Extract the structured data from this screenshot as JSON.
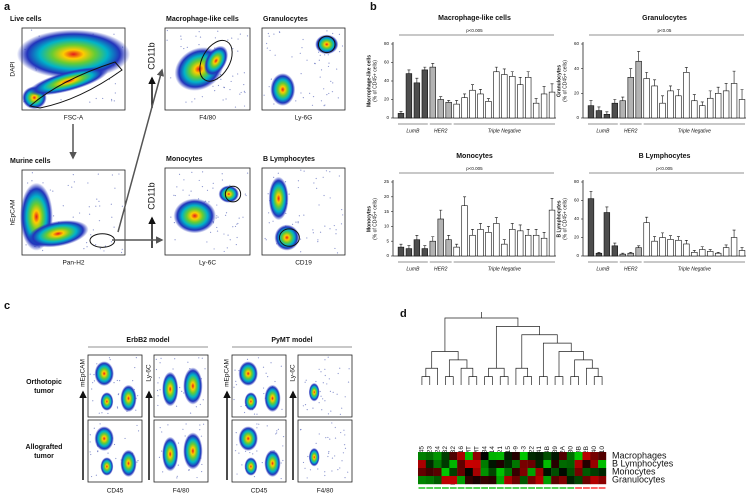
{
  "panel_labels": [
    "a",
    "b",
    "c",
    "d"
  ],
  "flow_gating": {
    "plots": [
      {
        "title": "Live cells",
        "ylabel": "DAPI",
        "xlabel": "FSC-A"
      },
      {
        "title": "Murine cells",
        "ylabel": "hEpCAM",
        "xlabel": "Pan-H2"
      },
      {
        "title": "Macrophage-like cells",
        "xlabel": "F4/80"
      },
      {
        "title": "Granulocytes",
        "xlabel": "Ly-6G"
      },
      {
        "title": "Monocytes",
        "xlabel": "Ly-6C"
      },
      {
        "title": "B Lymphocytes",
        "xlabel": "CD19"
      }
    ],
    "shared_ylabels": [
      "CD11b",
      "CD11b"
    ]
  },
  "chart_data": [
    {
      "type": "bar",
      "title": "Macrophage-like cells",
      "ylabel": [
        "Macrophage-like cells",
        "(% of CD45+ cells)"
      ],
      "annotation": "p<0.005",
      "ylim": [
        0,
        80
      ],
      "yticks": [
        0,
        20,
        40,
        60,
        80
      ],
      "series": [
        {
          "name": "LumB",
          "color": "#4d4d4d",
          "values": [
            5,
            48,
            38,
            52
          ],
          "errors": [
            2,
            4,
            5,
            3
          ]
        },
        {
          "name": "HER2",
          "color": "#b3b3b3",
          "values": [
            55,
            20,
            17
          ],
          "errors": [
            4,
            3,
            2
          ]
        },
        {
          "name": "Triple Negative",
          "color": "#ffffff",
          "values": [
            15,
            22,
            30,
            26,
            18,
            50,
            47,
            45,
            36,
            44,
            16,
            26,
            28
          ],
          "errors": [
            4,
            4,
            6,
            5,
            3,
            5,
            6,
            5,
            8,
            6,
            5,
            8,
            9
          ]
        }
      ]
    },
    {
      "type": "bar",
      "title": "Granulocytes",
      "ylabel": [
        "Granulocytes",
        "(% of CD45+ cells)"
      ],
      "annotation": "p<0.05",
      "ylim": [
        0,
        60
      ],
      "yticks": [
        0,
        20,
        40,
        60
      ],
      "series": [
        {
          "name": "LumB",
          "color": "#4d4d4d",
          "values": [
            10,
            6,
            3,
            12
          ],
          "errors": [
            4,
            3,
            2,
            3
          ]
        },
        {
          "name": "HER2",
          "color": "#b3b3b3",
          "values": [
            14,
            33,
            46
          ],
          "errors": [
            3,
            7,
            8
          ]
        },
        {
          "name": "Triple Negative",
          "color": "#ffffff",
          "values": [
            32,
            26,
            12,
            22,
            18,
            37,
            14,
            10,
            16,
            20,
            22,
            28,
            15
          ],
          "errors": [
            5,
            5,
            6,
            4,
            5,
            4,
            5,
            3,
            6,
            5,
            6,
            10,
            8
          ]
        }
      ]
    },
    {
      "type": "bar",
      "title": "Monocytes",
      "ylabel": [
        "Monocytes",
        "(% of CD45+ cells)"
      ],
      "annotation": "p<0.005",
      "ylim": [
        0,
        25
      ],
      "yticks": [
        0,
        5,
        10,
        15,
        20,
        25
      ],
      "series": [
        {
          "name": "LumB",
          "color": "#4d4d4d",
          "values": [
            3,
            2.5,
            5.5,
            2.5
          ],
          "errors": [
            1,
            1,
            1.5,
            1
          ]
        },
        {
          "name": "HER2",
          "color": "#b3b3b3",
          "values": [
            5,
            12.5,
            5.5
          ],
          "errors": [
            1.5,
            3,
            1.5
          ]
        },
        {
          "name": "Triple Negative",
          "color": "#ffffff",
          "values": [
            3,
            17,
            7,
            9,
            8,
            11,
            4,
            9,
            8.5,
            7,
            7,
            6,
            15.5
          ],
          "errors": [
            1,
            3,
            2,
            2,
            2,
            2,
            1.5,
            2,
            2,
            2,
            2,
            2,
            4
          ]
        }
      ]
    },
    {
      "type": "bar",
      "title": "B Lymphocytes",
      "ylabel": [
        "B Lymphocytes",
        "(% of CD45+ cells)"
      ],
      "annotation": "p<0.005",
      "ylim": [
        0,
        80
      ],
      "yticks": [
        0,
        20,
        40,
        60,
        80
      ],
      "series": [
        {
          "name": "LumB",
          "color": "#4d4d4d",
          "values": [
            62,
            3,
            47,
            11
          ],
          "errors": [
            8,
            1,
            6,
            3
          ]
        },
        {
          "name": "HER2",
          "color": "#b3b3b3",
          "values": [
            2,
            3,
            9
          ],
          "errors": [
            1,
            1,
            2
          ]
        },
        {
          "name": "Triple Negative",
          "color": "#ffffff",
          "values": [
            36,
            16,
            20,
            18,
            17,
            13,
            4,
            7,
            5,
            3,
            9,
            20,
            6
          ],
          "errors": [
            6,
            5,
            5,
            4,
            4,
            4,
            2,
            3,
            2,
            1,
            3,
            8,
            3
          ]
        }
      ]
    }
  ],
  "models": {
    "columns": [
      "ErbB2 model",
      "PyMT model"
    ],
    "rows": [
      [
        "Orthotopic",
        "tumor"
      ],
      [
        "Allografted",
        "tumor"
      ]
    ],
    "ylabels": [
      "mEpCAM",
      "Ly-6C",
      "mEpCAM",
      "Ly-6C"
    ],
    "xlabels": [
      "CD45",
      "F4/80",
      "CD45",
      "F4/80"
    ]
  },
  "heatmap": {
    "columns": [
      "HBCx-45",
      "HBCx-23",
      "HBCx-24",
      "BC-ErbB2",
      "MMTV-ErbB2",
      "HBCx-16",
      "BC-PyMT",
      "MMTV-PyMT",
      "HBCx-34",
      "HBCx-14",
      "HBCx-21",
      "HBCx-15",
      "HBCx-9",
      "HBCx-3",
      "HBCx-22",
      "HBCx-41",
      "HBCx-4B",
      "HBCx-39",
      "HBCx-12A",
      "HBCx-30",
      "HBCx-13B",
      "HBCx-12B",
      "HBCx-40",
      "HBCx-10"
    ],
    "rows": [
      "Macrophages",
      "B Lymphocytes",
      "Monocytes",
      "Granulocytes"
    ]
  }
}
